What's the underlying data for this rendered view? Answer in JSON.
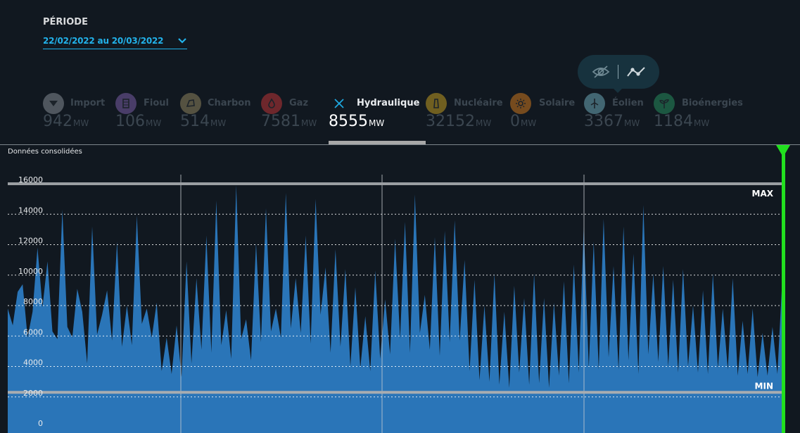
{
  "period": {
    "label": "PÉRIODE",
    "value": "22/02/2022 au 20/03/2022"
  },
  "toggle": {
    "hide_icon": "eye-slash-icon",
    "curve_icon": "line-chart-icon"
  },
  "sources": [
    {
      "key": "import",
      "name": "Import",
      "value": "942",
      "unit": "MW",
      "color": "#9aa3aa",
      "icon": "import-arrow-icon",
      "active": false
    },
    {
      "key": "fioul",
      "name": "Fioul",
      "value": "106",
      "unit": "MW",
      "color": "#8e6bbf",
      "icon": "oil-barrel-icon",
      "active": false
    },
    {
      "key": "charbon",
      "name": "Charbon",
      "value": "514",
      "unit": "MW",
      "color": "#a89a6a",
      "icon": "coal-icon",
      "active": false
    },
    {
      "key": "gaz",
      "name": "Gaz",
      "value": "7581",
      "unit": "MW",
      "color": "#e03b3b",
      "icon": "flame-icon",
      "active": false
    },
    {
      "key": "hydraulique",
      "name": "Hydraulique",
      "value": "8555",
      "unit": "MW",
      "color": "#1fa8e0",
      "icon": "close-icon",
      "active": true
    },
    {
      "key": "nucleaire",
      "name": "Nucléaire",
      "value": "32152",
      "unit": "MW",
      "color": "#e3b522",
      "icon": "nuclear-plant-icon",
      "active": false
    },
    {
      "key": "solaire",
      "name": "Solaire",
      "value": "0",
      "unit": "MW",
      "color": "#f08a1c",
      "icon": "sun-icon",
      "active": false
    },
    {
      "key": "eolien",
      "name": "Éolien",
      "value": "3367",
      "unit": "MW",
      "color": "#7ec6d6",
      "icon": "wind-turbine-icon",
      "active": false
    },
    {
      "key": "bioenergies",
      "name": "Bioénergies",
      "value": "1184",
      "unit": "MW",
      "color": "#2aa56a",
      "icon": "sprout-icon",
      "active": false
    }
  ],
  "chart": {
    "subtitle": "Données consolidées",
    "max_label": "MAX",
    "min_label": "MIN"
  },
  "chart_data": {
    "type": "area",
    "title": "",
    "xlabel": "",
    "ylabel": "",
    "ylim": [
      0,
      16500
    ],
    "yticks": [
      0,
      2000,
      4000,
      6000,
      8000,
      10000,
      12000,
      14000,
      16000
    ],
    "grid": "horizontal-dotted",
    "reference_lines": {
      "max": 16000,
      "min": 2300
    },
    "fill_color": "#2a75b8",
    "cursor_color": "#22e01f",
    "days": 27,
    "series": [
      {
        "values": [
          7800,
          6700,
          8900,
          9400,
          5900,
          7600,
          11800,
          7900,
          10900,
          6300,
          5800,
          14300,
          6600,
          5900,
          9100,
          7600,
          4200,
          13200,
          6100,
          7400,
          9000,
          5700,
          12200,
          5300,
          8000,
          5400,
          13900,
          6800,
          7800,
          5900,
          8200,
          3700,
          5900,
          3500,
          6700,
          3300,
          10900,
          4200,
          9800,
          5100,
          12600,
          4900,
          14900,
          5400,
          7700,
          4500,
          15900,
          5800,
          7100,
          4400,
          12100,
          5600,
          14400,
          6300,
          7800,
          5900,
          15400,
          6500,
          9800,
          6200,
          12600,
          5500,
          15000,
          7400,
          10500,
          4900,
          11700,
          5300,
          10400,
          4000,
          9200,
          3900,
          7300,
          3700,
          10300,
          4500,
          8400,
          4800,
          12400,
          5800,
          13500,
          4900,
          15300,
          6200,
          8700,
          5100,
          12500,
          4700,
          12900,
          5600,
          13600,
          5700,
          11000,
          3700,
          9700,
          3100,
          8000,
          3000,
          10100,
          2800,
          7600,
          2600,
          9300,
          3600,
          8500,
          2800,
          10100,
          2900,
          8500,
          2600,
          8200,
          3400,
          9600,
          2900,
          10700,
          3600,
          13200,
          3900,
          12200,
          3800,
          13700,
          4600,
          10600,
          3800,
          13200,
          4400,
          11400,
          3500,
          14600,
          4800,
          10100,
          4300,
          10600,
          4000,
          9700,
          3600,
          10400,
          4000,
          8000,
          3600,
          9000,
          3500,
          10100,
          3900,
          7800,
          3800,
          9800,
          3400,
          7000,
          3500,
          7800,
          3300,
          6200,
          3400,
          6600,
          3500,
          9900
        ]
      }
    ]
  }
}
